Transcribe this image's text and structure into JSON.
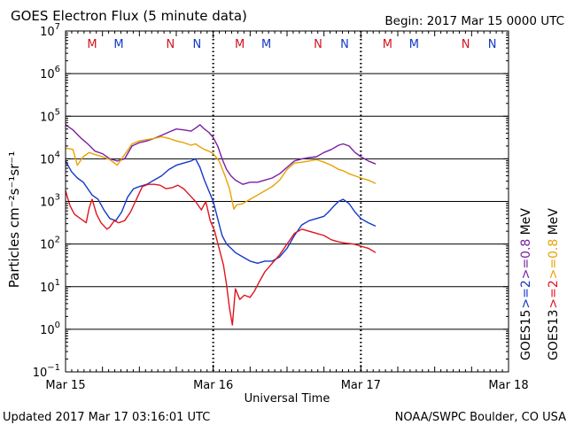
{
  "header": {
    "title": "GOES Electron Flux (5 minute data)",
    "begin": "Begin: 2017 Mar 15 0000 UTC"
  },
  "footer": {
    "updated": "Updated 2017 Mar 17 03:16:01 UTC",
    "credit": "NOAA/SWPC Boulder, CO USA"
  },
  "colors": {
    "purple": "#7a1fa2",
    "orange": "#e8a200",
    "blue": "#1438c8",
    "red": "#e0141e",
    "marker_red": "#d0141e",
    "marker_blue": "#1438c8"
  },
  "chart_data": {
    "type": "line",
    "title": "GOES Electron Flux (5 minute data)",
    "xlabel": "Universal Time",
    "ylabel": "Particles cm⁻²s⁻¹sr⁻¹",
    "x_unit": "days since 2017 Mar 15 0000 UTC",
    "xlim": [
      0,
      3
    ],
    "ylim_log10": [
      -1,
      7
    ],
    "x_ticks": [
      {
        "x": 0,
        "label": "Mar 15"
      },
      {
        "x": 1,
        "label": "Mar 16"
      },
      {
        "x": 2,
        "label": "Mar 17"
      },
      {
        "x": 3,
        "label": "Mar 18"
      }
    ],
    "y_ticks": [
      {
        "exp": 7,
        "base": "10",
        "sup": "7"
      },
      {
        "exp": 6,
        "base": "10",
        "sup": "6"
      },
      {
        "exp": 5,
        "base": "10",
        "sup": "5"
      },
      {
        "exp": 4,
        "base": "10",
        "sup": "4"
      },
      {
        "exp": 3,
        "base": "10",
        "sup": "3"
      },
      {
        "exp": 2,
        "base": "10",
        "sup": "2"
      },
      {
        "exp": 1,
        "base": "10",
        "sup": "1"
      },
      {
        "exp": 0,
        "base": "10",
        "sup": "0"
      },
      {
        "exp": -1,
        "base": "10",
        "sup": "−1"
      }
    ],
    "grid_log10": [
      6,
      5,
      4,
      3,
      2,
      1,
      0
    ],
    "dashed_log10": 3,
    "day_dividers_x": [
      1,
      2
    ],
    "markers": [
      {
        "x": 0.18,
        "label": "M",
        "color": "red"
      },
      {
        "x": 0.36,
        "label": "M",
        "color": "blue"
      },
      {
        "x": 0.71,
        "label": "N",
        "color": "red"
      },
      {
        "x": 0.89,
        "label": "N",
        "color": "blue"
      },
      {
        "x": 1.18,
        "label": "M",
        "color": "red"
      },
      {
        "x": 1.36,
        "label": "M",
        "color": "blue"
      },
      {
        "x": 1.71,
        "label": "N",
        "color": "red"
      },
      {
        "x": 1.89,
        "label": "N",
        "color": "blue"
      },
      {
        "x": 2.18,
        "label": "M",
        "color": "red"
      },
      {
        "x": 2.36,
        "label": "M",
        "color": "blue"
      },
      {
        "x": 2.71,
        "label": "N",
        "color": "red"
      },
      {
        "x": 2.89,
        "label": "N",
        "color": "blue"
      }
    ],
    "legend": [
      {
        "text": "GOES15",
        "color": "#000000",
        "col": 0
      },
      {
        "text": ">=2",
        "color": "#1438c8",
        "col": 0
      },
      {
        "text": ">=0.8",
        "color": "#7a1fa2",
        "col": 0
      },
      {
        "text": "MeV",
        "color": "#000000",
        "col": 0
      },
      {
        "text": "GOES13",
        "color": "#000000",
        "col": 1
      },
      {
        "text": ">=2",
        "color": "#e0141e",
        "col": 1
      },
      {
        "text": ">=0.8",
        "color": "#e8a200",
        "col": 1
      },
      {
        "text": "MeV",
        "color": "#000000",
        "col": 1
      }
    ],
    "series": [
      {
        "name": "GOES15 >=0.8 MeV",
        "color": "purple",
        "points": [
          [
            0.0,
            4.8
          ],
          [
            0.05,
            4.68
          ],
          [
            0.1,
            4.5
          ],
          [
            0.15,
            4.35
          ],
          [
            0.2,
            4.18
          ],
          [
            0.25,
            4.12
          ],
          [
            0.3,
            4.0
          ],
          [
            0.35,
            3.95
          ],
          [
            0.4,
            4.0
          ],
          [
            0.45,
            4.3
          ],
          [
            0.5,
            4.38
          ],
          [
            0.55,
            4.42
          ],
          [
            0.6,
            4.48
          ],
          [
            0.65,
            4.55
          ],
          [
            0.7,
            4.63
          ],
          [
            0.75,
            4.7
          ],
          [
            0.8,
            4.68
          ],
          [
            0.85,
            4.65
          ],
          [
            0.88,
            4.72
          ],
          [
            0.91,
            4.8
          ],
          [
            0.94,
            4.7
          ],
          [
            0.97,
            4.62
          ],
          [
            1.0,
            4.5
          ],
          [
            1.03,
            4.3
          ],
          [
            1.06,
            4.0
          ],
          [
            1.09,
            3.75
          ],
          [
            1.12,
            3.6
          ],
          [
            1.15,
            3.5
          ],
          [
            1.2,
            3.4
          ],
          [
            1.25,
            3.45
          ],
          [
            1.3,
            3.45
          ],
          [
            1.35,
            3.5
          ],
          [
            1.4,
            3.55
          ],
          [
            1.45,
            3.65
          ],
          [
            1.5,
            3.8
          ],
          [
            1.55,
            3.95
          ],
          [
            1.6,
            4.0
          ],
          [
            1.65,
            4.03
          ],
          [
            1.7,
            4.05
          ],
          [
            1.75,
            4.15
          ],
          [
            1.8,
            4.22
          ],
          [
            1.85,
            4.32
          ],
          [
            1.88,
            4.35
          ],
          [
            1.92,
            4.3
          ],
          [
            1.96,
            4.15
          ],
          [
            2.0,
            4.05
          ],
          [
            2.05,
            3.95
          ],
          [
            2.1,
            3.88
          ]
        ]
      },
      {
        "name": "GOES13 >=0.8 MeV",
        "color": "orange",
        "points": [
          [
            0.0,
            4.25
          ],
          [
            0.05,
            4.22
          ],
          [
            0.08,
            3.85
          ],
          [
            0.12,
            4.05
          ],
          [
            0.16,
            4.15
          ],
          [
            0.2,
            4.1
          ],
          [
            0.25,
            4.05
          ],
          [
            0.3,
            3.98
          ],
          [
            0.35,
            3.85
          ],
          [
            0.4,
            4.1
          ],
          [
            0.45,
            4.35
          ],
          [
            0.5,
            4.42
          ],
          [
            0.55,
            4.45
          ],
          [
            0.6,
            4.48
          ],
          [
            0.65,
            4.52
          ],
          [
            0.7,
            4.48
          ],
          [
            0.75,
            4.42
          ],
          [
            0.8,
            4.38
          ],
          [
            0.85,
            4.32
          ],
          [
            0.88,
            4.35
          ],
          [
            0.91,
            4.28
          ],
          [
            0.94,
            4.22
          ],
          [
            0.97,
            4.18
          ],
          [
            1.0,
            4.12
          ],
          [
            1.04,
            3.95
          ],
          [
            1.08,
            3.6
          ],
          [
            1.11,
            3.3
          ],
          [
            1.14,
            2.82
          ],
          [
            1.16,
            2.92
          ],
          [
            1.2,
            2.95
          ],
          [
            1.25,
            3.05
          ],
          [
            1.3,
            3.15
          ],
          [
            1.35,
            3.25
          ],
          [
            1.4,
            3.35
          ],
          [
            1.45,
            3.5
          ],
          [
            1.5,
            3.75
          ],
          [
            1.55,
            3.9
          ],
          [
            1.6,
            3.92
          ],
          [
            1.65,
            3.95
          ],
          [
            1.7,
            3.98
          ],
          [
            1.75,
            3.92
          ],
          [
            1.8,
            3.85
          ],
          [
            1.85,
            3.75
          ],
          [
            1.88,
            3.72
          ],
          [
            1.92,
            3.65
          ],
          [
            1.96,
            3.6
          ],
          [
            2.0,
            3.55
          ],
          [
            2.05,
            3.5
          ],
          [
            2.1,
            3.42
          ]
        ]
      },
      {
        "name": "GOES15 >=2 MeV",
        "color": "blue",
        "points": [
          [
            0.0,
            3.95
          ],
          [
            0.04,
            3.7
          ],
          [
            0.08,
            3.55
          ],
          [
            0.12,
            3.45
          ],
          [
            0.15,
            3.3
          ],
          [
            0.18,
            3.15
          ],
          [
            0.22,
            3.05
          ],
          [
            0.26,
            2.8
          ],
          [
            0.3,
            2.6
          ],
          [
            0.34,
            2.55
          ],
          [
            0.38,
            2.75
          ],
          [
            0.42,
            3.1
          ],
          [
            0.46,
            3.3
          ],
          [
            0.5,
            3.35
          ],
          [
            0.55,
            3.4
          ],
          [
            0.6,
            3.5
          ],
          [
            0.65,
            3.6
          ],
          [
            0.7,
            3.75
          ],
          [
            0.75,
            3.85
          ],
          [
            0.8,
            3.9
          ],
          [
            0.85,
            3.95
          ],
          [
            0.88,
            4.0
          ],
          [
            0.91,
            3.8
          ],
          [
            0.94,
            3.5
          ],
          [
            0.97,
            3.25
          ],
          [
            1.0,
            3.0
          ],
          [
            1.03,
            2.6
          ],
          [
            1.06,
            2.2
          ],
          [
            1.09,
            2.0
          ],
          [
            1.12,
            1.9
          ],
          [
            1.15,
            1.8
          ],
          [
            1.2,
            1.7
          ],
          [
            1.25,
            1.6
          ],
          [
            1.3,
            1.55
          ],
          [
            1.35,
            1.6
          ],
          [
            1.4,
            1.6
          ],
          [
            1.45,
            1.7
          ],
          [
            1.5,
            1.9
          ],
          [
            1.55,
            2.2
          ],
          [
            1.6,
            2.45
          ],
          [
            1.65,
            2.55
          ],
          [
            1.7,
            2.6
          ],
          [
            1.75,
            2.65
          ],
          [
            1.78,
            2.75
          ],
          [
            1.82,
            2.9
          ],
          [
            1.85,
            3.0
          ],
          [
            1.88,
            3.05
          ],
          [
            1.92,
            2.95
          ],
          [
            1.96,
            2.75
          ],
          [
            2.0,
            2.6
          ],
          [
            2.05,
            2.5
          ],
          [
            2.1,
            2.42
          ]
        ]
      },
      {
        "name": "GOES13 >=2 MeV",
        "color": "red",
        "points": [
          [
            0.0,
            3.25
          ],
          [
            0.03,
            2.9
          ],
          [
            0.06,
            2.7
          ],
          [
            0.1,
            2.6
          ],
          [
            0.14,
            2.5
          ],
          [
            0.16,
            2.85
          ],
          [
            0.18,
            3.05
          ],
          [
            0.21,
            2.7
          ],
          [
            0.24,
            2.5
          ],
          [
            0.28,
            2.35
          ],
          [
            0.3,
            2.4
          ],
          [
            0.33,
            2.55
          ],
          [
            0.36,
            2.5
          ],
          [
            0.4,
            2.55
          ],
          [
            0.44,
            2.75
          ],
          [
            0.48,
            3.05
          ],
          [
            0.52,
            3.35
          ],
          [
            0.56,
            3.4
          ],
          [
            0.6,
            3.4
          ],
          [
            0.64,
            3.38
          ],
          [
            0.68,
            3.3
          ],
          [
            0.72,
            3.32
          ],
          [
            0.76,
            3.38
          ],
          [
            0.8,
            3.3
          ],
          [
            0.84,
            3.15
          ],
          [
            0.88,
            3.0
          ],
          [
            0.92,
            2.8
          ],
          [
            0.95,
            3.0
          ],
          [
            0.98,
            2.55
          ],
          [
            1.01,
            2.3
          ],
          [
            1.04,
            1.9
          ],
          [
            1.07,
            1.5
          ],
          [
            1.09,
            1.05
          ],
          [
            1.11,
            0.5
          ],
          [
            1.13,
            0.1
          ],
          [
            1.15,
            0.95
          ],
          [
            1.18,
            0.7
          ],
          [
            1.21,
            0.8
          ],
          [
            1.25,
            0.75
          ],
          [
            1.28,
            0.9
          ],
          [
            1.31,
            1.1
          ],
          [
            1.35,
            1.35
          ],
          [
            1.4,
            1.55
          ],
          [
            1.45,
            1.75
          ],
          [
            1.5,
            2.0
          ],
          [
            1.55,
            2.25
          ],
          [
            1.6,
            2.35
          ],
          [
            1.65,
            2.3
          ],
          [
            1.7,
            2.25
          ],
          [
            1.75,
            2.2
          ],
          [
            1.8,
            2.1
          ],
          [
            1.85,
            2.05
          ],
          [
            1.9,
            2.02
          ],
          [
            1.95,
            2.0
          ],
          [
            2.0,
            1.95
          ],
          [
            2.05,
            1.9
          ],
          [
            2.1,
            1.8
          ]
        ]
      }
    ]
  }
}
